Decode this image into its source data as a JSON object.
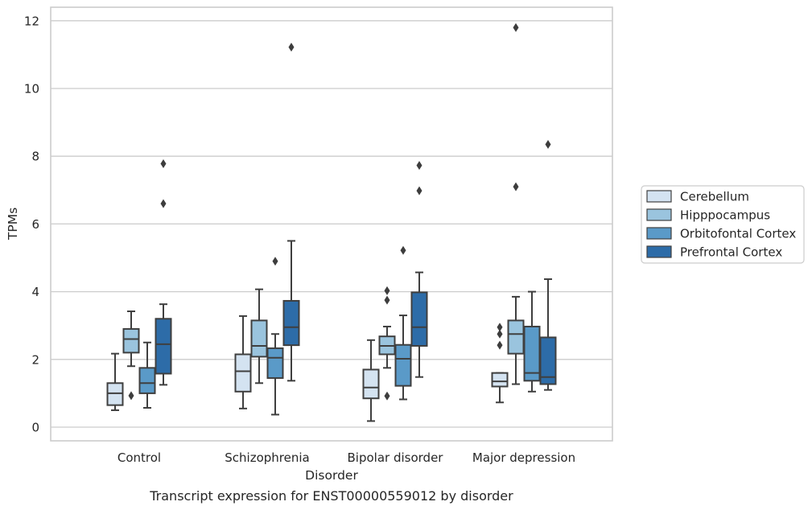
{
  "chart_data": {
    "type": "box",
    "xlabel": "Disorder",
    "ylabel": "TPMs",
    "caption": "Transcript expression for ENST00000559012 by disorder",
    "ylim": [
      -0.4,
      12.4
    ],
    "yticks": [
      0,
      2,
      4,
      6,
      8,
      10,
      12
    ],
    "grid": "horizontal",
    "legend_position": "right",
    "categories": [
      "Control",
      "Schizophrenia",
      "Bipolar disorder",
      "Major depression"
    ],
    "series": [
      {
        "name": "Cerebellum",
        "color": "#d4e3f1",
        "boxes": [
          {
            "whislo": 0.5,
            "q1": 0.65,
            "med": 1.0,
            "q3": 1.3,
            "whishi": 2.17,
            "fliers": []
          },
          {
            "whislo": 0.55,
            "q1": 1.05,
            "med": 1.65,
            "q3": 2.15,
            "whishi": 3.28,
            "fliers": []
          },
          {
            "whislo": 0.18,
            "q1": 0.85,
            "med": 1.17,
            "q3": 1.7,
            "whishi": 2.57,
            "fliers": []
          },
          {
            "whislo": 0.73,
            "q1": 1.2,
            "med": 1.35,
            "q3": 1.6,
            "whishi": 1.6,
            "fliers": [
              2.42,
              2.75,
              2.95
            ]
          }
        ]
      },
      {
        "name": "Hipppocampus",
        "color": "#9ac4de",
        "boxes": [
          {
            "whislo": 1.8,
            "q1": 2.2,
            "med": 2.6,
            "q3": 2.9,
            "whishi": 3.42,
            "fliers": [
              0.93
            ]
          },
          {
            "whislo": 1.3,
            "q1": 2.08,
            "med": 2.4,
            "q3": 3.15,
            "whishi": 4.07,
            "fliers": []
          },
          {
            "whislo": 1.75,
            "q1": 2.15,
            "med": 2.4,
            "q3": 2.68,
            "whishi": 2.97,
            "fliers": [
              0.92,
              3.75,
              4.03
            ]
          },
          {
            "whislo": 1.27,
            "q1": 2.17,
            "med": 2.75,
            "q3": 3.15,
            "whishi": 3.85,
            "fliers": [
              11.8,
              7.1
            ]
          }
        ]
      },
      {
        "name": "Orbitofontal Cortex",
        "color": "#5a9ac8",
        "boxes": [
          {
            "whislo": 0.57,
            "q1": 1.0,
            "med": 1.3,
            "q3": 1.75,
            "whishi": 2.5,
            "fliers": []
          },
          {
            "whislo": 0.37,
            "q1": 1.45,
            "med": 2.05,
            "q3": 2.33,
            "whishi": 2.75,
            "fliers": [
              4.9
            ]
          },
          {
            "whislo": 0.82,
            "q1": 1.22,
            "med": 2.02,
            "q3": 2.43,
            "whishi": 3.3,
            "fliers": [
              5.22
            ]
          },
          {
            "whislo": 1.05,
            "q1": 1.37,
            "med": 1.6,
            "q3": 2.97,
            "whishi": 4.0,
            "fliers": []
          }
        ]
      },
      {
        "name": "Prefrontal Cortex",
        "color": "#2d6ca8",
        "boxes": [
          {
            "whislo": 1.25,
            "q1": 1.58,
            "med": 2.45,
            "q3": 3.2,
            "whishi": 3.63,
            "fliers": [
              6.6,
              7.78
            ]
          },
          {
            "whislo": 1.37,
            "q1": 2.42,
            "med": 2.95,
            "q3": 3.73,
            "whishi": 5.5,
            "fliers": [
              11.22
            ]
          },
          {
            "whislo": 1.48,
            "q1": 2.4,
            "med": 2.95,
            "q3": 3.98,
            "whishi": 4.57,
            "fliers": [
              6.98,
              7.73
            ]
          },
          {
            "whislo": 1.1,
            "q1": 1.27,
            "med": 1.48,
            "q3": 2.65,
            "whishi": 4.37,
            "fliers": [
              8.35
            ]
          }
        ]
      }
    ]
  }
}
